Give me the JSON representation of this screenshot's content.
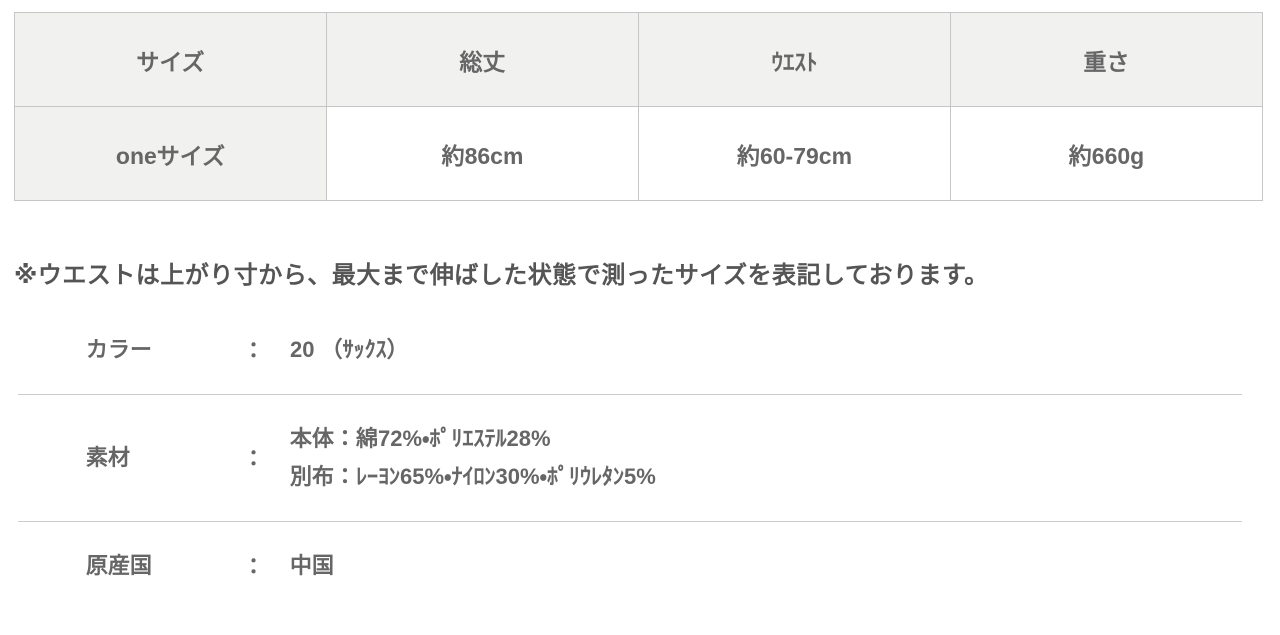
{
  "size_table": {
    "headers": [
      "サイズ",
      "総丈",
      "ｳｴｽﾄ",
      "重さ"
    ],
    "row": {
      "size": "oneサイズ",
      "total_length": "約86cm",
      "waist": "約60-79cm",
      "weight": "約660g"
    }
  },
  "note": "※ウエストは上がり寸から、最大まで伸ばした状態で測ったサイズを表記しております。",
  "details": [
    {
      "label": "カラー",
      "colon": "：",
      "lines": [
        "20 （ｻｯｸｽ）"
      ]
    },
    {
      "label": "素材",
      "colon": "：",
      "lines": [
        "本体：綿72%・ﾎﾟﾘｴｽﾃﾙ28%",
        "別布：ﾚｰﾖﾝ65%・ﾅｲﾛﾝ30%・ﾎﾟﾘｳﾚﾀﾝ5%"
      ]
    },
    {
      "label": "原産国",
      "colon": "：",
      "lines": [
        "中国"
      ]
    }
  ],
  "colors": {
    "text": "#666666",
    "note_text": "#555555",
    "table_header_bg": "#f1f1f0",
    "table_border": "#c6c6c6",
    "divider": "#cccccc"
  }
}
